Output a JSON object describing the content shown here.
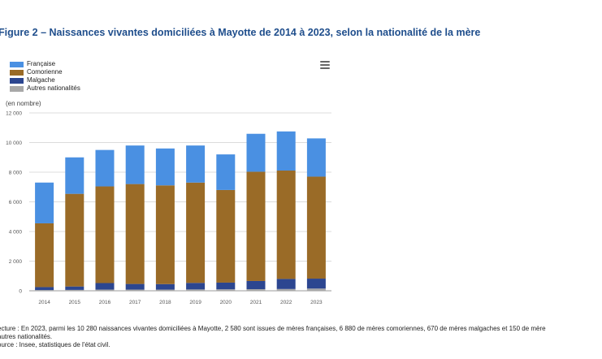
{
  "title": "Figure 2 – Naissances vivantes domiciliées à Mayotte de 2014 à 2023, selon la nationalité de la mère",
  "legend": [
    {
      "label": "Française",
      "color": "#4a90e2"
    },
    {
      "label": "Comorienne",
      "color": "#9a6b27"
    },
    {
      "label": "Malgache",
      "color": "#2c4690"
    },
    {
      "label": "Autres nationalités",
      "color": "#a8a8a8"
    }
  ],
  "unit_label": "(en nombre)",
  "menu_icon": "hamburger-menu-icon",
  "chart_data": {
    "type": "bar",
    "stacked": true,
    "categories": [
      "2014",
      "2015",
      "2016",
      "2017",
      "2018",
      "2019",
      "2020",
      "2021",
      "2022",
      "2023"
    ],
    "series": [
      {
        "name": "Autres nationalités",
        "color": "#a8a8a8",
        "values": [
          50,
          60,
          80,
          80,
          80,
          90,
          100,
          110,
          120,
          150
        ]
      },
      {
        "name": "Malgache",
        "color": "#2c4690",
        "values": [
          200,
          230,
          440,
          380,
          370,
          440,
          450,
          550,
          680,
          670
        ]
      },
      {
        "name": "Comorienne",
        "color": "#9a6b27",
        "values": [
          4300,
          6250,
          6520,
          6740,
          6660,
          6770,
          6250,
          7370,
          7310,
          6880
        ]
      },
      {
        "name": "Française",
        "color": "#4a90e2",
        "values": [
          2750,
          2460,
          2460,
          2600,
          2490,
          2500,
          2400,
          2560,
          2640,
          2580
        ]
      }
    ],
    "ylim": [
      0,
      12000
    ],
    "yticks": [
      0,
      2000,
      4000,
      6000,
      8000,
      10000,
      12000
    ],
    "ytick_labels": [
      "0",
      "2 000",
      "4 000",
      "6 000",
      "8 000",
      "10 000",
      "12 000"
    ],
    "ylabel": "(en nombre)",
    "xlabel": "",
    "grid": true,
    "legend_position": "top-left"
  },
  "footnote": {
    "line1": "ecture : En 2023, parmi les 10 280 naissances vivantes domiciliées à Mayotte, 2 580 sont issues de mères françaises, 6 880 de mères comoriennes, 670 de mères malgaches et 150 de mère",
    "line2": "autres nationalités.",
    "line3": "ource : Insee, statistiques de l'état civil."
  }
}
